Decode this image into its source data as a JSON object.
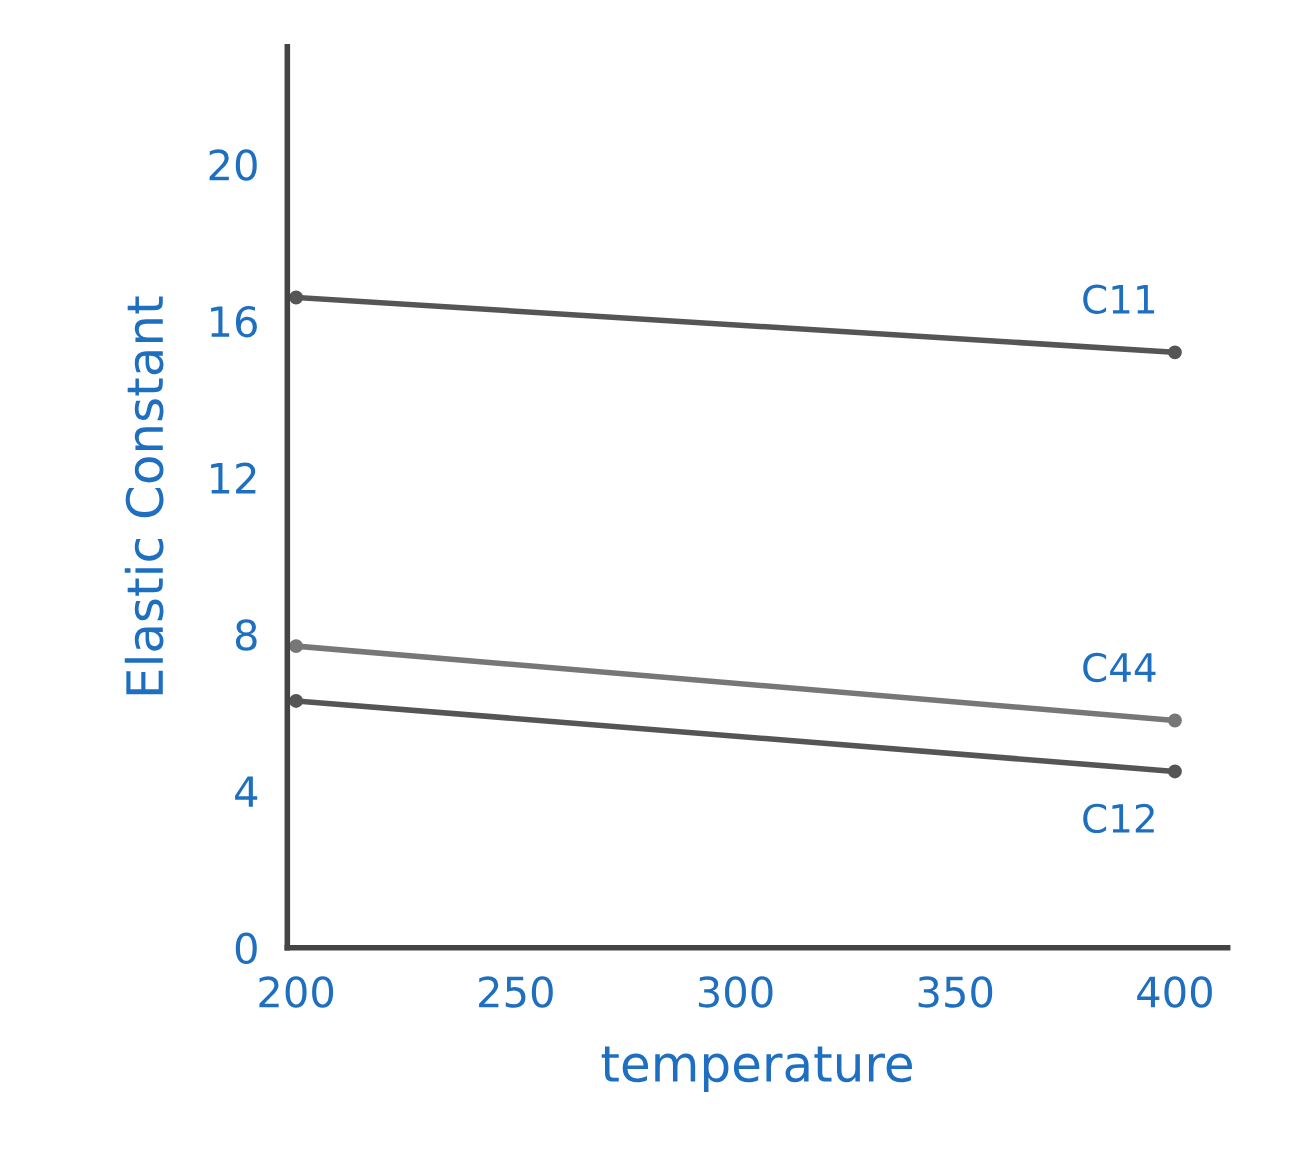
{
  "chart_data": {
    "type": "line",
    "xlabel": "temperature",
    "ylabel": "Elastic Constant",
    "x": [
      200,
      400
    ],
    "xlim": [
      198,
      412
    ],
    "xticks": [
      200,
      250,
      300,
      350,
      400
    ],
    "ylim": [
      0,
      23
    ],
    "yticks": [
      0,
      4,
      8,
      12,
      16,
      20
    ],
    "grid": false,
    "legend": false,
    "marker": "circle",
    "line_style": "solid",
    "series": [
      {
        "name": "C11",
        "color": "#555555",
        "values": [
          16.6,
          15.2
        ]
      },
      {
        "name": "C44",
        "color": "#777777",
        "values": [
          7.7,
          5.8
        ]
      },
      {
        "name": "C12",
        "color": "#555555",
        "values": [
          6.3,
          4.5
        ]
      }
    ]
  }
}
